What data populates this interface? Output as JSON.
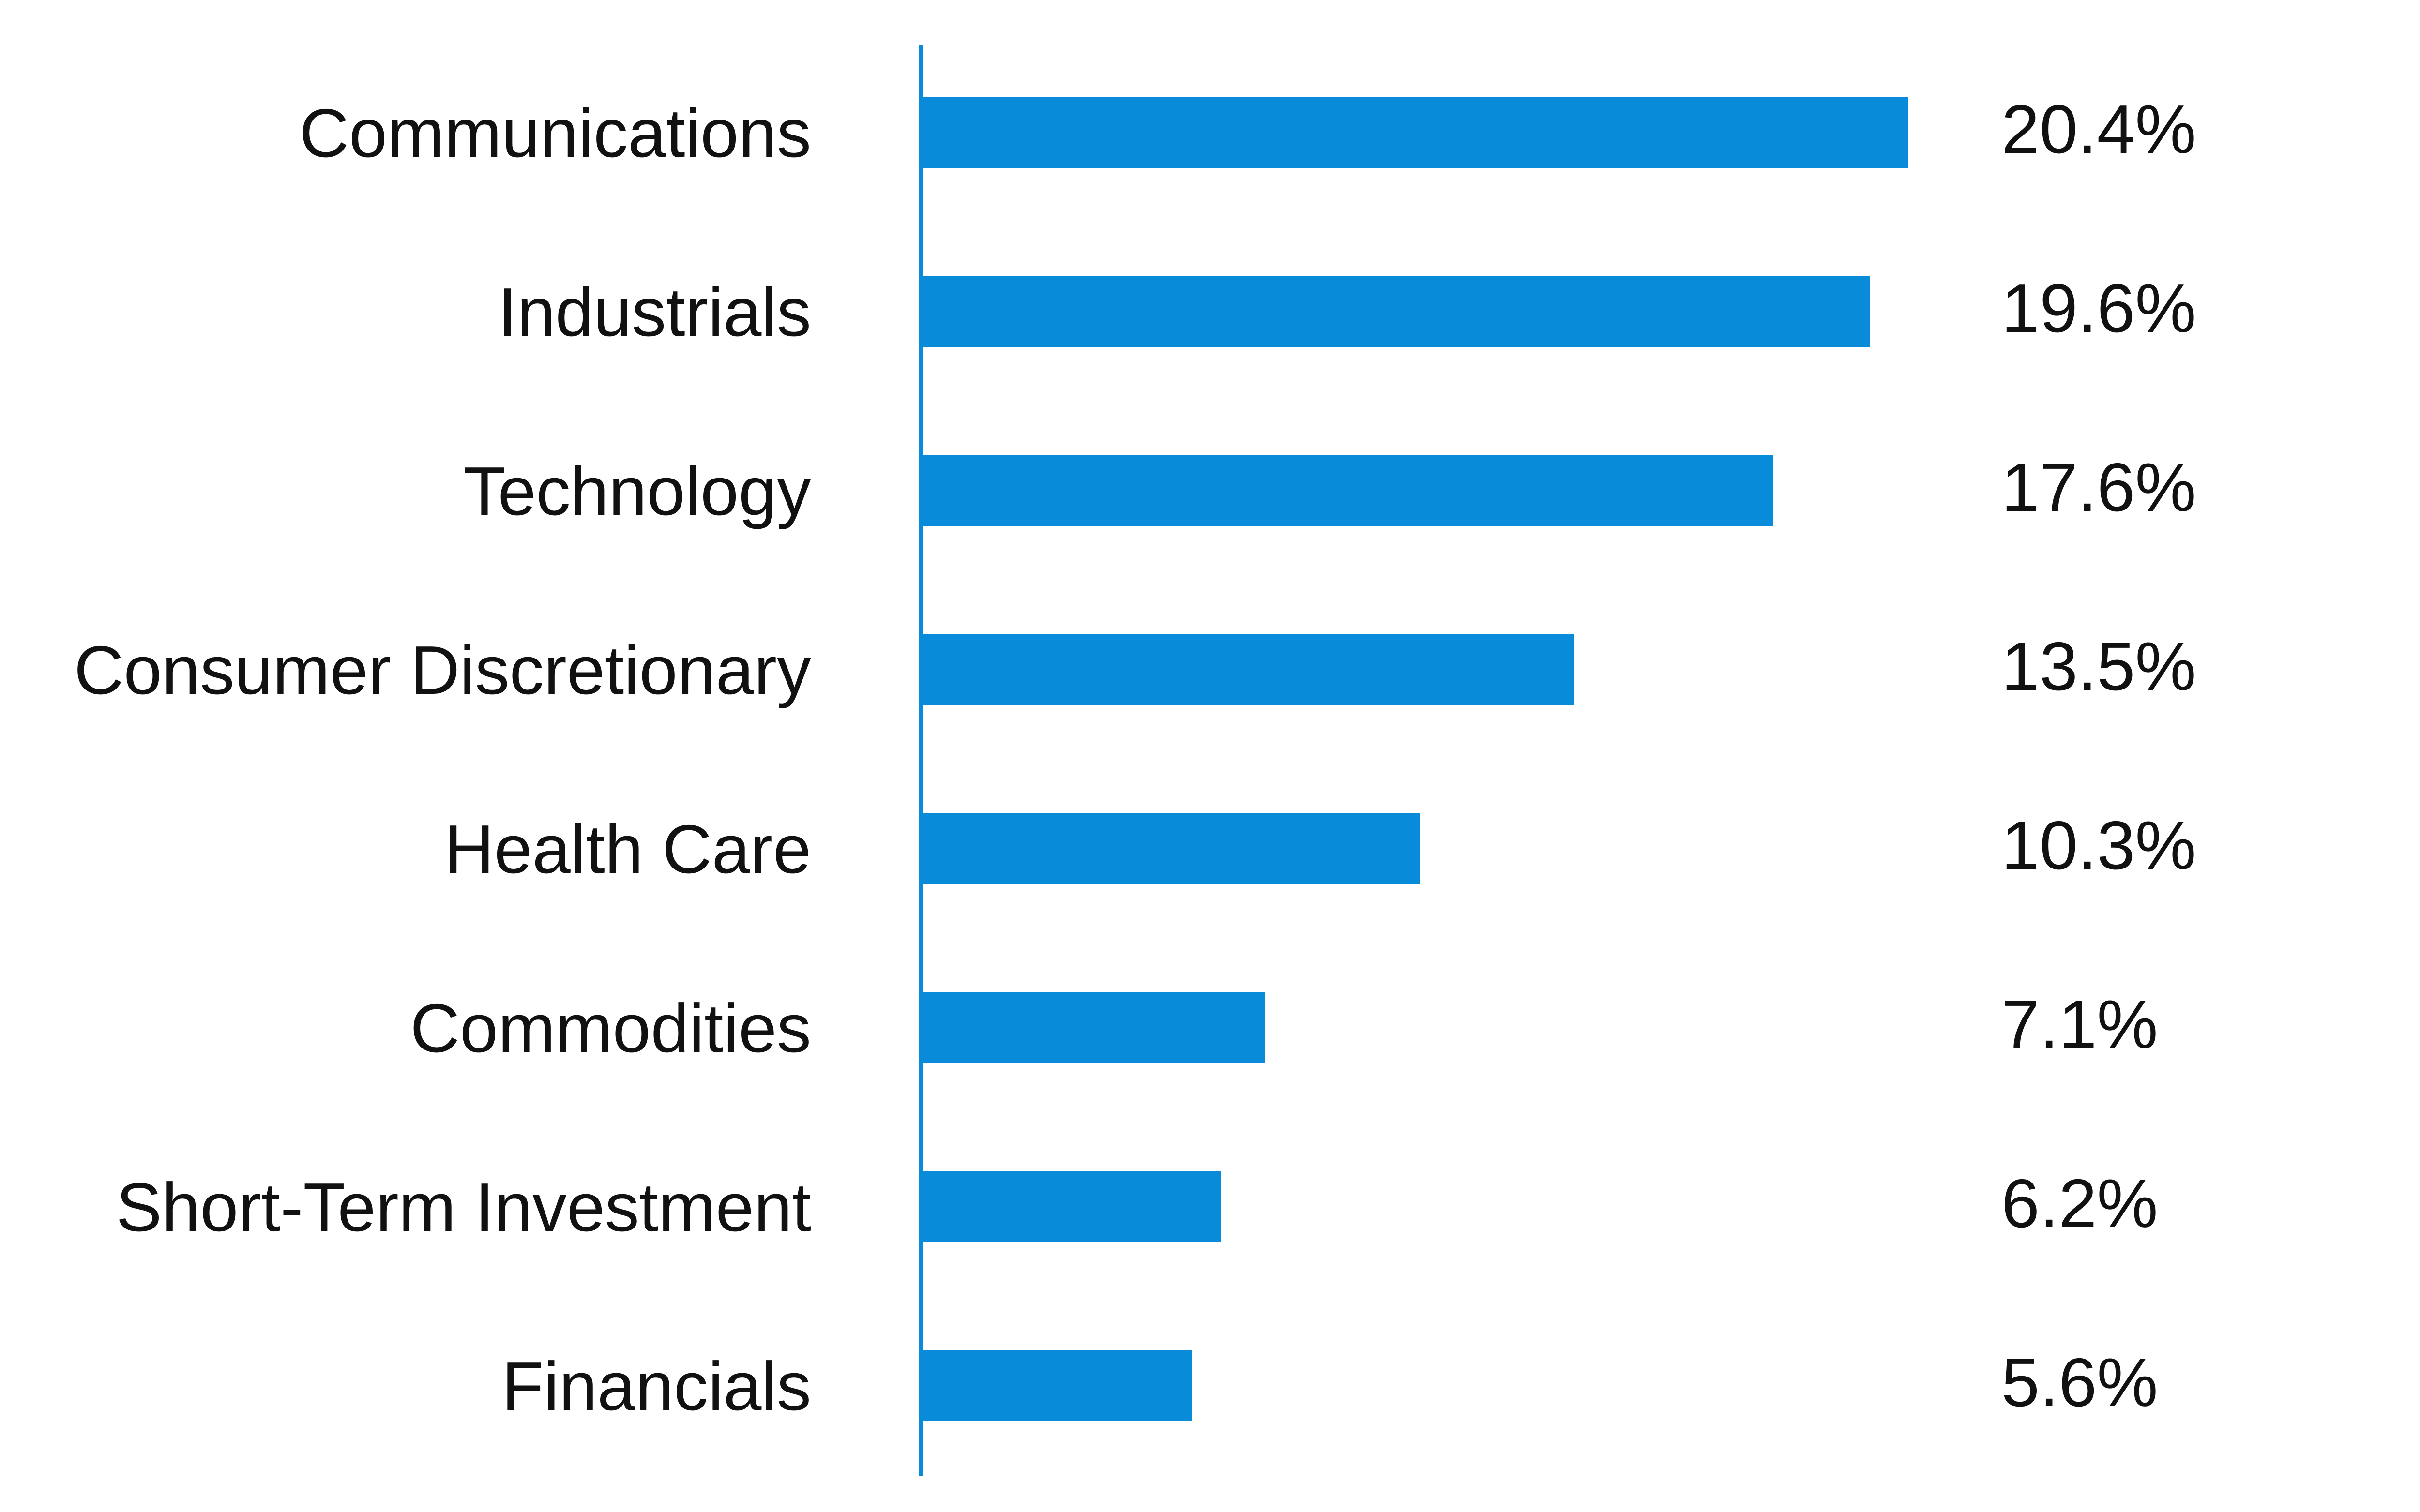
{
  "chart_data": {
    "type": "bar",
    "orientation": "horizontal",
    "categories": [
      "Communications",
      "Industrials",
      "Technology",
      "Consumer Discretionary",
      "Health Care",
      "Commodities",
      "Short-Term Investment",
      "Financials"
    ],
    "values": [
      20.4,
      19.6,
      17.6,
      13.5,
      10.3,
      7.1,
      6.2,
      5.6
    ],
    "value_labels": [
      "20.4%",
      "19.6%",
      "17.6%",
      "13.5%",
      "10.3%",
      "7.1%",
      "6.2%",
      "5.6%"
    ],
    "unit": "%",
    "title": "",
    "xlabel": "",
    "ylabel": "",
    "grid": false,
    "legend": "none",
    "colors": {
      "bar": "#088CDA",
      "axis": "#088CDA",
      "text": "#111111"
    }
  }
}
